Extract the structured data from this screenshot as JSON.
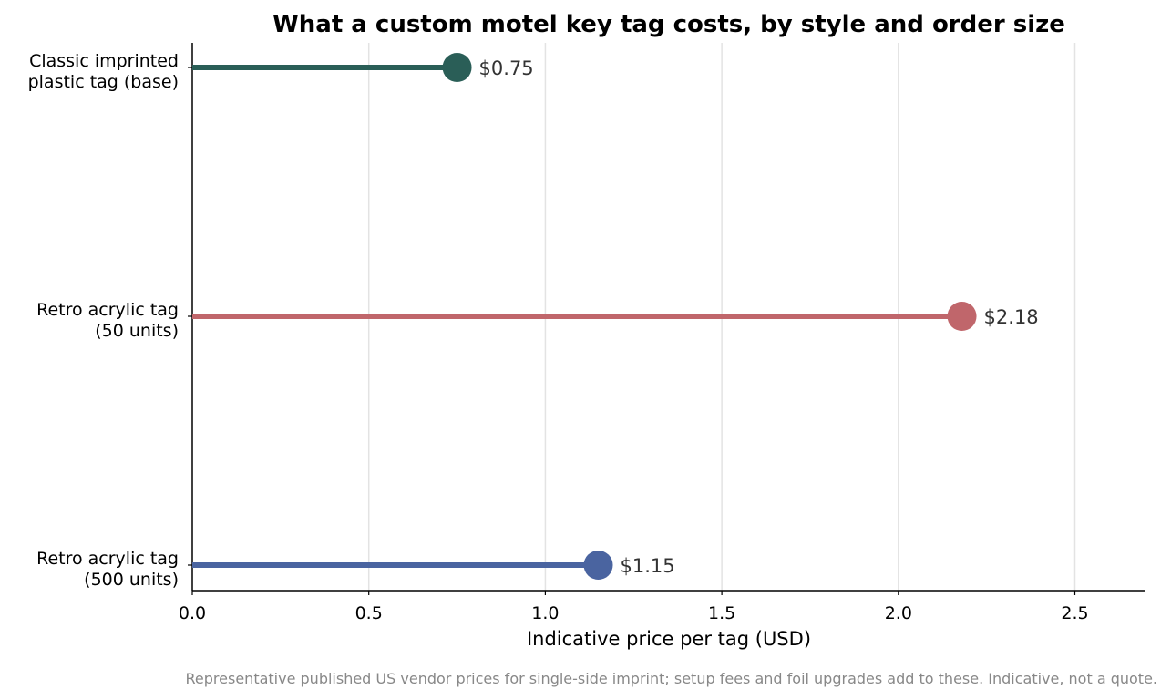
{
  "chart_data": {
    "type": "bar",
    "orientation": "horizontal",
    "style": "lollipop",
    "title": "What a custom motel key tag costs, by style and order size",
    "xlabel": "Indicative price per tag (USD)",
    "ylabel": "",
    "xlim": [
      0,
      2.7
    ],
    "xticks": [
      "0.0",
      "0.5",
      "1.0",
      "1.5",
      "2.0",
      "2.5"
    ],
    "xtick_values": [
      0,
      0.5,
      1.0,
      1.5,
      2.0,
      2.5
    ],
    "grid": "vertical",
    "items": [
      {
        "label_lines": [
          "Classic imprinted",
          "plastic tag (base)"
        ],
        "value": 0.75,
        "value_label": "$0.75",
        "color": "#2a5e57"
      },
      {
        "label_lines": [
          "Retro acrylic tag",
          "(50 units)"
        ],
        "value": 2.18,
        "value_label": "$2.18",
        "color": "#c0666b"
      },
      {
        "label_lines": [
          "Retro acrylic tag",
          "(500 units)"
        ],
        "value": 1.15,
        "value_label": "$1.15",
        "color": "#4a64a0"
      }
    ],
    "footnote": "Representative published US vendor prices for single-side imprint; setup fees and foil upgrades add to these. Indicative, not a quote."
  }
}
